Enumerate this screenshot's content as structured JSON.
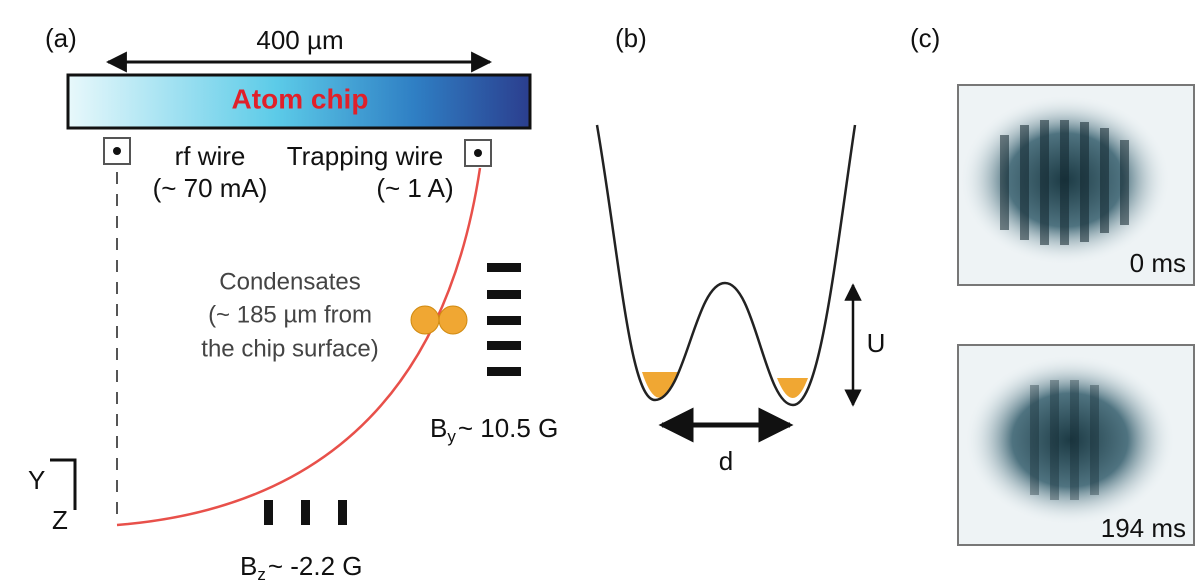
{
  "panels": {
    "a": {
      "label": "(a)",
      "scale": "400 µm",
      "chip": "Atom chip",
      "rf_wire": {
        "name": "rf wire",
        "current": "(~ 70 mA)"
      },
      "trapping_wire": {
        "name": "Trapping wire",
        "current": "(~ 1 A)"
      },
      "condensates": [
        "Condensates",
        "(~ 185 µm from",
        "the chip surface)"
      ],
      "field_y": {
        "symbol": "B",
        "subscript": "y",
        "value": "~ 10.5 G"
      },
      "field_z": {
        "symbol": "B",
        "subscript": "z",
        "value": "~ -2.2 G"
      },
      "axes": {
        "y": "Y",
        "z": "Z"
      }
    },
    "b": {
      "label": "(b)",
      "barrier": "U",
      "separation": "d"
    },
    "c": {
      "label": "(c)",
      "images": [
        "0 ms",
        "194 ms"
      ]
    }
  }
}
